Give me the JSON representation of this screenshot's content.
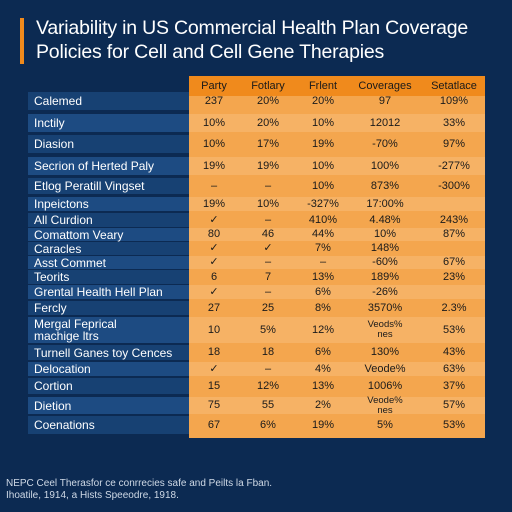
{
  "title_lines": [
    "Variability in US Commercial Health Plan Coverage",
    "Policies for Cell and Cell Gene Therapies"
  ],
  "chart_data": {
    "type": "table",
    "columns": [
      "Party",
      "Fotlary",
      "Frlent",
      "Coverages",
      "Setatlace"
    ],
    "rows": [
      {
        "label": "Calemed",
        "cells": [
          "237",
          "20%",
          "20%",
          "97",
          "109%"
        ]
      },
      {
        "label": "Inctily",
        "cells": [
          "10%",
          "20%",
          "10%",
          "12012",
          "33%"
        ]
      },
      {
        "label": "Diasion",
        "cells": [
          "10%",
          "17%",
          "19%",
          "-70%",
          "97%"
        ]
      },
      {
        "label": "Secrion of Herted Paly",
        "cells": [
          "19%",
          "19%",
          "10%",
          "100%",
          "-277%"
        ]
      },
      {
        "label": "Etlog Peratill Vingset",
        "cells": [
          "–",
          "–",
          "10%",
          "873%",
          "-300%"
        ]
      },
      {
        "label": "Inpeictons",
        "cells": [
          "19%",
          "10%",
          "-327%",
          "17:00%",
          ""
        ]
      },
      {
        "label": "All Curdion",
        "cells": [
          "✓",
          "–",
          "410%",
          "4.48%",
          "243%"
        ]
      },
      {
        "label": "Comattom Veary",
        "cells": [
          "80",
          "46",
          "44%",
          "10%",
          "87%"
        ]
      },
      {
        "label": "Caracles",
        "cells": [
          "✓",
          "✓",
          "7%",
          "148%",
          ""
        ]
      },
      {
        "label": "Asst Commet",
        "cells": [
          "✓",
          "–",
          "–",
          "-60%",
          "67%"
        ]
      },
      {
        "label": "Teorits",
        "cells": [
          "6",
          "7",
          "13%",
          "189%",
          "23%"
        ]
      },
      {
        "label": "Grental Health Hell Plan",
        "cells": [
          "✓",
          "–",
          "6%",
          "-26%",
          ""
        ]
      },
      {
        "label": "Fercly",
        "cells": [
          "27",
          "25",
          "8%",
          "3570%",
          "2.3%"
        ]
      },
      {
        "label": "Mergal Feprical\nmachige ltrs",
        "cells": [
          "10",
          "5%",
          "12%",
          "Veods%\nnes",
          "53%"
        ]
      },
      {
        "label": "Turnell Ganes toy Cences",
        "cells": [
          "18",
          "18",
          "6%",
          "130%",
          "43%"
        ]
      },
      {
        "label": "Delocation",
        "cells": [
          "✓",
          "–",
          "4%",
          "Veode%",
          "63%"
        ]
      },
      {
        "label": "Cortion",
        "cells": [
          "15",
          "12%",
          "13%",
          "1006%",
          "37%"
        ]
      },
      {
        "label": "Dietion",
        "cells": [
          "75",
          "55",
          "2%",
          "Veode%\nnes",
          "57%"
        ]
      },
      {
        "label": "Coenations",
        "cells": [
          "67",
          "6%",
          "19%",
          "5%",
          "53%"
        ]
      }
    ]
  },
  "footnote_lines": [
    "NEPC Ceel Therasfor ce conrrecies safe and Peilts la Fban.",
    "Ihoatile, 1914, a Hists Speeodre, 1918."
  ],
  "colors": {
    "background": "#0c2a52",
    "accent": "#f08a1c",
    "table_orange": "#f4a64e"
  }
}
